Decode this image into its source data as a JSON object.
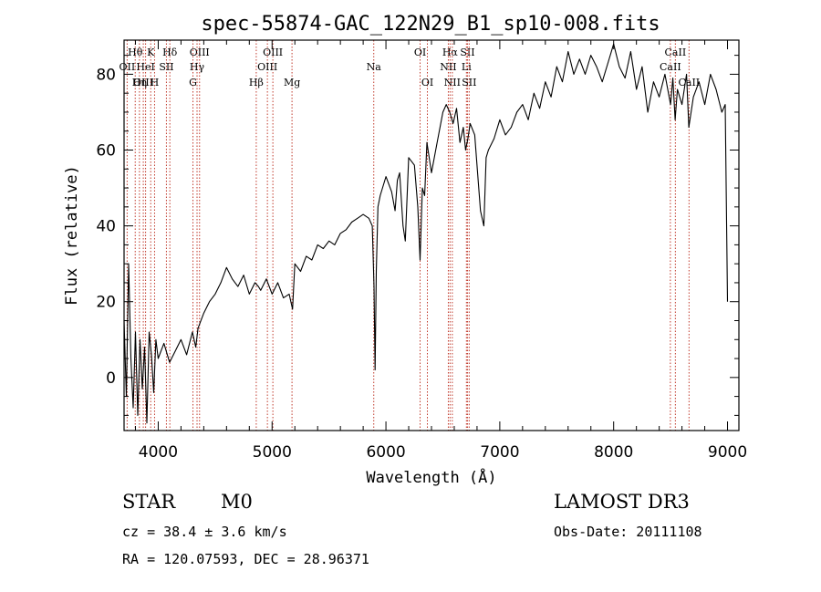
{
  "chart_data": {
    "type": "line",
    "title": "spec-55874-GAC_122N29_B1_sp10-008.fits",
    "xlabel": "Wavelength (Å)",
    "ylabel": "Flux (relative)",
    "xlim": [
      3700,
      9100
    ],
    "ylim": [
      -14,
      89
    ],
    "x_ticks": [
      4000,
      5000,
      6000,
      7000,
      8000,
      9000
    ],
    "y_ticks": [
      0,
      20,
      40,
      60,
      80
    ],
    "series": [
      {
        "name": "spectrum",
        "x": [
          3700,
          3720,
          3740,
          3760,
          3780,
          3800,
          3820,
          3840,
          3860,
          3880,
          3900,
          3920,
          3940,
          3960,
          3980,
          4000,
          4050,
          4100,
          4150,
          4200,
          4250,
          4300,
          4330,
          4350,
          4400,
          4450,
          4500,
          4550,
          4600,
          4650,
          4700,
          4750,
          4800,
          4850,
          4880,
          4900,
          4950,
          5000,
          5050,
          5100,
          5150,
          5180,
          5200,
          5250,
          5300,
          5350,
          5400,
          5450,
          5500,
          5550,
          5600,
          5650,
          5700,
          5750,
          5800,
          5850,
          5880,
          5895,
          5905,
          5915,
          5930,
          5950,
          6000,
          6050,
          6080,
          6100,
          6120,
          6150,
          6170,
          6200,
          6250,
          6280,
          6300,
          6320,
          6340,
          6360,
          6400,
          6450,
          6500,
          6530,
          6560,
          6590,
          6620,
          6650,
          6680,
          6700,
          6720,
          6740,
          6780,
          6800,
          6830,
          6860,
          6880,
          6900,
          6950,
          7000,
          7050,
          7100,
          7150,
          7200,
          7250,
          7300,
          7350,
          7400,
          7450,
          7500,
          7550,
          7600,
          7650,
          7700,
          7750,
          7800,
          7850,
          7900,
          7950,
          8000,
          8050,
          8100,
          8150,
          8200,
          8250,
          8300,
          8350,
          8400,
          8450,
          8500,
          8520,
          8540,
          8560,
          8600,
          8640,
          8660,
          8700,
          8750,
          8800,
          8850,
          8900,
          8950,
          8980,
          9000
        ],
        "y": [
          15,
          -5,
          30,
          5,
          -8,
          12,
          -10,
          10,
          -3,
          8,
          -12,
          12,
          6,
          -4,
          10,
          5,
          9,
          4,
          7,
          10,
          6,
          12,
          8,
          13,
          17,
          20,
          22,
          25,
          29,
          26,
          24,
          27,
          22,
          25,
          24,
          23,
          26,
          22,
          25,
          21,
          22,
          18,
          30,
          28,
          32,
          31,
          35,
          34,
          36,
          35,
          38,
          39,
          41,
          42,
          43,
          42,
          40,
          24,
          2,
          28,
          45,
          48,
          53,
          49,
          44,
          52,
          54,
          40,
          36,
          58,
          56,
          45,
          31,
          50,
          48,
          62,
          54,
          62,
          70,
          72,
          70,
          67,
          71,
          62,
          66,
          60,
          63,
          67,
          64,
          56,
          44,
          40,
          58,
          60,
          63,
          68,
          64,
          66,
          70,
          72,
          68,
          75,
          71,
          78,
          74,
          82,
          78,
          86,
          80,
          84,
          80,
          85,
          82,
          78,
          83,
          88,
          82,
          79,
          86,
          76,
          82,
          70,
          78,
          74,
          80,
          72,
          79,
          68,
          76,
          72,
          80,
          66,
          74,
          78,
          72,
          80,
          76,
          70,
          72,
          20
        ]
      }
    ],
    "spectral_lines": [
      {
        "name": "Hθ",
        "wavelength": 3798,
        "label_row": 1
      },
      {
        "name": "OII",
        "wavelength": 3727,
        "label_row": 2
      },
      {
        "name": "OIII",
        "wavelength": 3869,
        "label_row": 3
      },
      {
        "name": "K",
        "wavelength": 3934,
        "label_row": 1
      },
      {
        "name": "HeI",
        "wavelength": 3889,
        "label_row": 2
      },
      {
        "name": "Hη",
        "wavelength": 3835,
        "label_row": 3
      },
      {
        "name": "Hδ",
        "wavelength": 4102,
        "label_row": 1
      },
      {
        "name": "SII",
        "wavelength": 4072,
        "label_row": 2
      },
      {
        "name": "H",
        "wavelength": 3968,
        "label_row": 3
      },
      {
        "name": "OIII",
        "wavelength": 4363,
        "label_row": 1
      },
      {
        "name": "Hγ",
        "wavelength": 4341,
        "label_row": 2
      },
      {
        "name": "G",
        "wavelength": 4305,
        "label_row": 3
      },
      {
        "name": "Hβ",
        "wavelength": 4861,
        "label_row": 3
      },
      {
        "name": "OIII",
        "wavelength": 5007,
        "label_row": 1
      },
      {
        "name": "OIII",
        "wavelength": 4959,
        "label_row": 2
      },
      {
        "name": "Mg",
        "wavelength": 5175,
        "label_row": 3
      },
      {
        "name": "Na",
        "wavelength": 5893,
        "label_row": 2
      },
      {
        "name": "OI",
        "wavelength": 6300,
        "label_row": 1
      },
      {
        "name": "OI",
        "wavelength": 6364,
        "label_row": 3
      },
      {
        "name": "Hα",
        "wavelength": 6563,
        "label_row": 1
      },
      {
        "name": "SII",
        "wavelength": 6716,
        "label_row": 1
      },
      {
        "name": "NII",
        "wavelength": 6548,
        "label_row": 2
      },
      {
        "name": "Li",
        "wavelength": 6707,
        "label_row": 2
      },
      {
        "name": "NII",
        "wavelength": 6583,
        "label_row": 3
      },
      {
        "name": "SII",
        "wavelength": 6731,
        "label_row": 3
      },
      {
        "name": "CaII",
        "wavelength": 8542,
        "label_row": 1
      },
      {
        "name": "CaII",
        "wavelength": 8498,
        "label_row": 2
      },
      {
        "name": "CaII",
        "wavelength": 8662,
        "label_row": 3
      }
    ]
  },
  "info": {
    "object_class": "STAR",
    "subclass": "M0",
    "survey": "LAMOST DR3",
    "redshift": "cz = 38.4 ± 3.6 km/s",
    "obs_date": "Obs-Date: 20111108",
    "coords": "RA = 120.07593, DEC =  28.96371"
  }
}
